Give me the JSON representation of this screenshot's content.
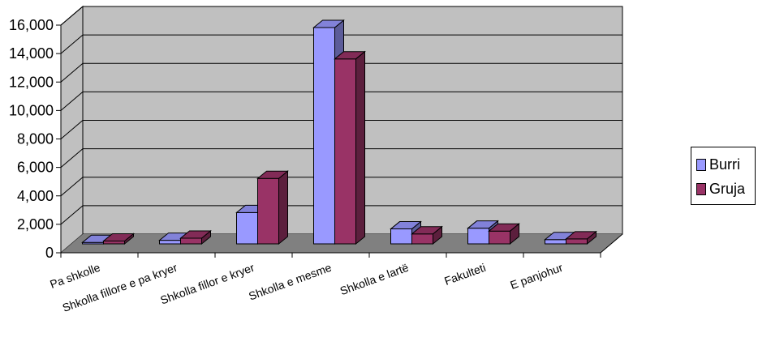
{
  "chart_data": {
    "type": "bar",
    "categories": [
      "Pa shkolle",
      "Shkolla fillore e pa kryer",
      "Shkolla fillor e kryer",
      "Shkolla e mesme",
      "Shkolla e lartë",
      "Fakulteti",
      "E panjohur"
    ],
    "series": [
      {
        "name": "Burri",
        "values": [
          100,
          250,
          2200,
          15200,
          1050,
          1100,
          300
        ],
        "color": "#9999FF"
      },
      {
        "name": "Gruja",
        "values": [
          200,
          400,
          4600,
          13000,
          700,
          900,
          350
        ],
        "color": "#993366"
      }
    ],
    "yticks": [
      "0",
      "2,000",
      "4,000",
      "6,000",
      "8,000",
      "10,000",
      "12,000",
      "14,000",
      "16,000"
    ],
    "ylim": [
      0,
      16000
    ],
    "grid": true,
    "legend_position": "right",
    "plot_wall_color": "#C0C0C0",
    "floor_color": "#808080"
  }
}
